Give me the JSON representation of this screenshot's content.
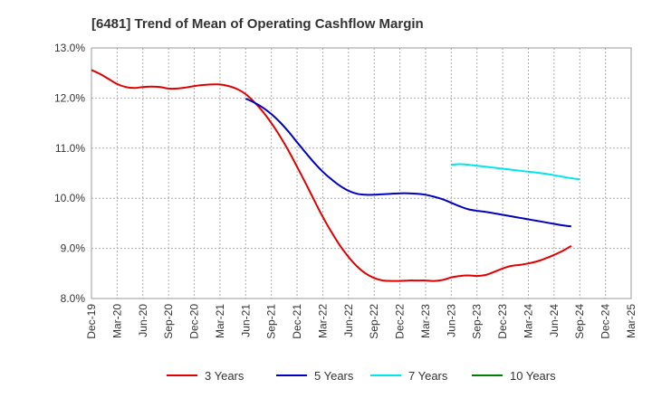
{
  "chart_data": {
    "type": "line",
    "title": "[6481]  Trend of Mean of Operating Cashflow Margin",
    "xlabel": "",
    "ylabel": "",
    "x_ticks": [
      "Dec-19",
      "Mar-20",
      "Jun-20",
      "Sep-20",
      "Dec-20",
      "Mar-21",
      "Jun-21",
      "Sep-21",
      "Dec-21",
      "Mar-22",
      "Jun-22",
      "Sep-22",
      "Dec-22",
      "Mar-23",
      "Jun-23",
      "Sep-23",
      "Dec-23",
      "Mar-24",
      "Jun-24",
      "Sep-24",
      "Dec-24",
      "Mar-25"
    ],
    "y_ticks": [
      "8.0%",
      "9.0%",
      "10.0%",
      "11.0%",
      "12.0%",
      "13.0%"
    ],
    "ylim": [
      8.0,
      13.0
    ],
    "grid": true,
    "legend_position": "bottom",
    "series": [
      {
        "name": "3 Years",
        "color": "#e00000",
        "points": [
          [
            "Dec-19",
            12.56
          ],
          [
            "Jan-20",
            12.48
          ],
          [
            "Feb-20",
            12.38
          ],
          [
            "Mar-20",
            12.28
          ],
          [
            "Apr-20",
            12.22
          ],
          [
            "May-20",
            12.2
          ],
          [
            "Jun-20",
            12.22
          ],
          [
            "Jul-20",
            12.23
          ],
          [
            "Aug-20",
            12.22
          ],
          [
            "Sep-20",
            12.19
          ],
          [
            "Oct-20",
            12.19
          ],
          [
            "Nov-20",
            12.21
          ],
          [
            "Dec-20",
            12.24
          ],
          [
            "Jan-21",
            12.26
          ],
          [
            "Feb-21",
            12.27
          ],
          [
            "Mar-21",
            12.27
          ],
          [
            "Apr-21",
            12.24
          ],
          [
            "May-21",
            12.18
          ],
          [
            "Jun-21",
            12.08
          ],
          [
            "Jul-21",
            11.92
          ],
          [
            "Aug-21",
            11.73
          ],
          [
            "Sep-21",
            11.5
          ],
          [
            "Oct-21",
            11.24
          ],
          [
            "Nov-21",
            10.95
          ],
          [
            "Dec-21",
            10.63
          ],
          [
            "Jan-22",
            10.3
          ],
          [
            "Feb-22",
            9.96
          ],
          [
            "Mar-22",
            9.63
          ],
          [
            "Apr-22",
            9.33
          ],
          [
            "May-22",
            9.06
          ],
          [
            "Jun-22",
            8.83
          ],
          [
            "Jul-22",
            8.64
          ],
          [
            "Aug-22",
            8.5
          ],
          [
            "Sep-22",
            8.41
          ],
          [
            "Oct-22",
            8.36
          ],
          [
            "Nov-22",
            8.35
          ],
          [
            "Dec-22",
            8.35
          ],
          [
            "Jan-23",
            8.36
          ],
          [
            "Feb-23",
            8.36
          ],
          [
            "Mar-23",
            8.36
          ],
          [
            "Apr-23",
            8.35
          ],
          [
            "May-23",
            8.37
          ],
          [
            "Jun-23",
            8.42
          ],
          [
            "Jul-23",
            8.45
          ],
          [
            "Aug-23",
            8.46
          ],
          [
            "Sep-23",
            8.45
          ],
          [
            "Oct-23",
            8.47
          ],
          [
            "Nov-23",
            8.53
          ],
          [
            "Dec-23",
            8.6
          ],
          [
            "Jan-24",
            8.65
          ],
          [
            "Feb-24",
            8.67
          ],
          [
            "Mar-24",
            8.7
          ],
          [
            "Apr-24",
            8.74
          ],
          [
            "May-24",
            8.8
          ],
          [
            "Jun-24",
            8.87
          ],
          [
            "Jul-24",
            8.95
          ],
          [
            "Aug-24",
            9.05
          ]
        ]
      },
      {
        "name": "5 Years",
        "color": "#0000c0",
        "points": [
          [
            "Jun-21",
            11.99
          ],
          [
            "Jul-21",
            11.91
          ],
          [
            "Aug-21",
            11.81
          ],
          [
            "Sep-21",
            11.68
          ],
          [
            "Oct-21",
            11.52
          ],
          [
            "Nov-21",
            11.33
          ],
          [
            "Dec-21",
            11.12
          ],
          [
            "Jan-22",
            10.91
          ],
          [
            "Feb-22",
            10.71
          ],
          [
            "Mar-22",
            10.53
          ],
          [
            "Apr-22",
            10.38
          ],
          [
            "May-22",
            10.25
          ],
          [
            "Jun-22",
            10.15
          ],
          [
            "Jul-22",
            10.09
          ],
          [
            "Aug-22",
            10.07
          ],
          [
            "Sep-22",
            10.07
          ],
          [
            "Oct-22",
            10.08
          ],
          [
            "Nov-22",
            10.09
          ],
          [
            "Dec-22",
            10.1
          ],
          [
            "Jan-23",
            10.1
          ],
          [
            "Feb-23",
            10.09
          ],
          [
            "Mar-23",
            10.07
          ],
          [
            "Apr-23",
            10.03
          ],
          [
            "May-23",
            9.98
          ],
          [
            "Jun-23",
            9.91
          ],
          [
            "Jul-23",
            9.84
          ],
          [
            "Aug-23",
            9.78
          ],
          [
            "Sep-23",
            9.75
          ],
          [
            "Oct-23",
            9.73
          ],
          [
            "Nov-23",
            9.7
          ],
          [
            "Dec-23",
            9.67
          ],
          [
            "Jan-24",
            9.64
          ],
          [
            "Feb-24",
            9.61
          ],
          [
            "Mar-24",
            9.58
          ],
          [
            "Apr-24",
            9.55
          ],
          [
            "May-24",
            9.52
          ],
          [
            "Jun-24",
            9.49
          ],
          [
            "Jul-24",
            9.46
          ],
          [
            "Aug-24",
            9.44
          ]
        ]
      },
      {
        "name": "7 Years",
        "color": "#00e5ee",
        "points": [
          [
            "Jun-23",
            10.67
          ],
          [
            "Jul-23",
            10.68
          ],
          [
            "Aug-23",
            10.67
          ],
          [
            "Sep-23",
            10.65
          ],
          [
            "Oct-23",
            10.63
          ],
          [
            "Nov-23",
            10.61
          ],
          [
            "Dec-23",
            10.59
          ],
          [
            "Jan-24",
            10.57
          ],
          [
            "Feb-24",
            10.55
          ],
          [
            "Mar-24",
            10.53
          ],
          [
            "Apr-24",
            10.51
          ],
          [
            "May-24",
            10.49
          ],
          [
            "Jun-24",
            10.46
          ],
          [
            "Jul-24",
            10.43
          ],
          [
            "Aug-24",
            10.4
          ],
          [
            "Sep-24",
            10.38
          ]
        ]
      },
      {
        "name": "10 Years",
        "color": "#008000",
        "points": []
      }
    ]
  }
}
